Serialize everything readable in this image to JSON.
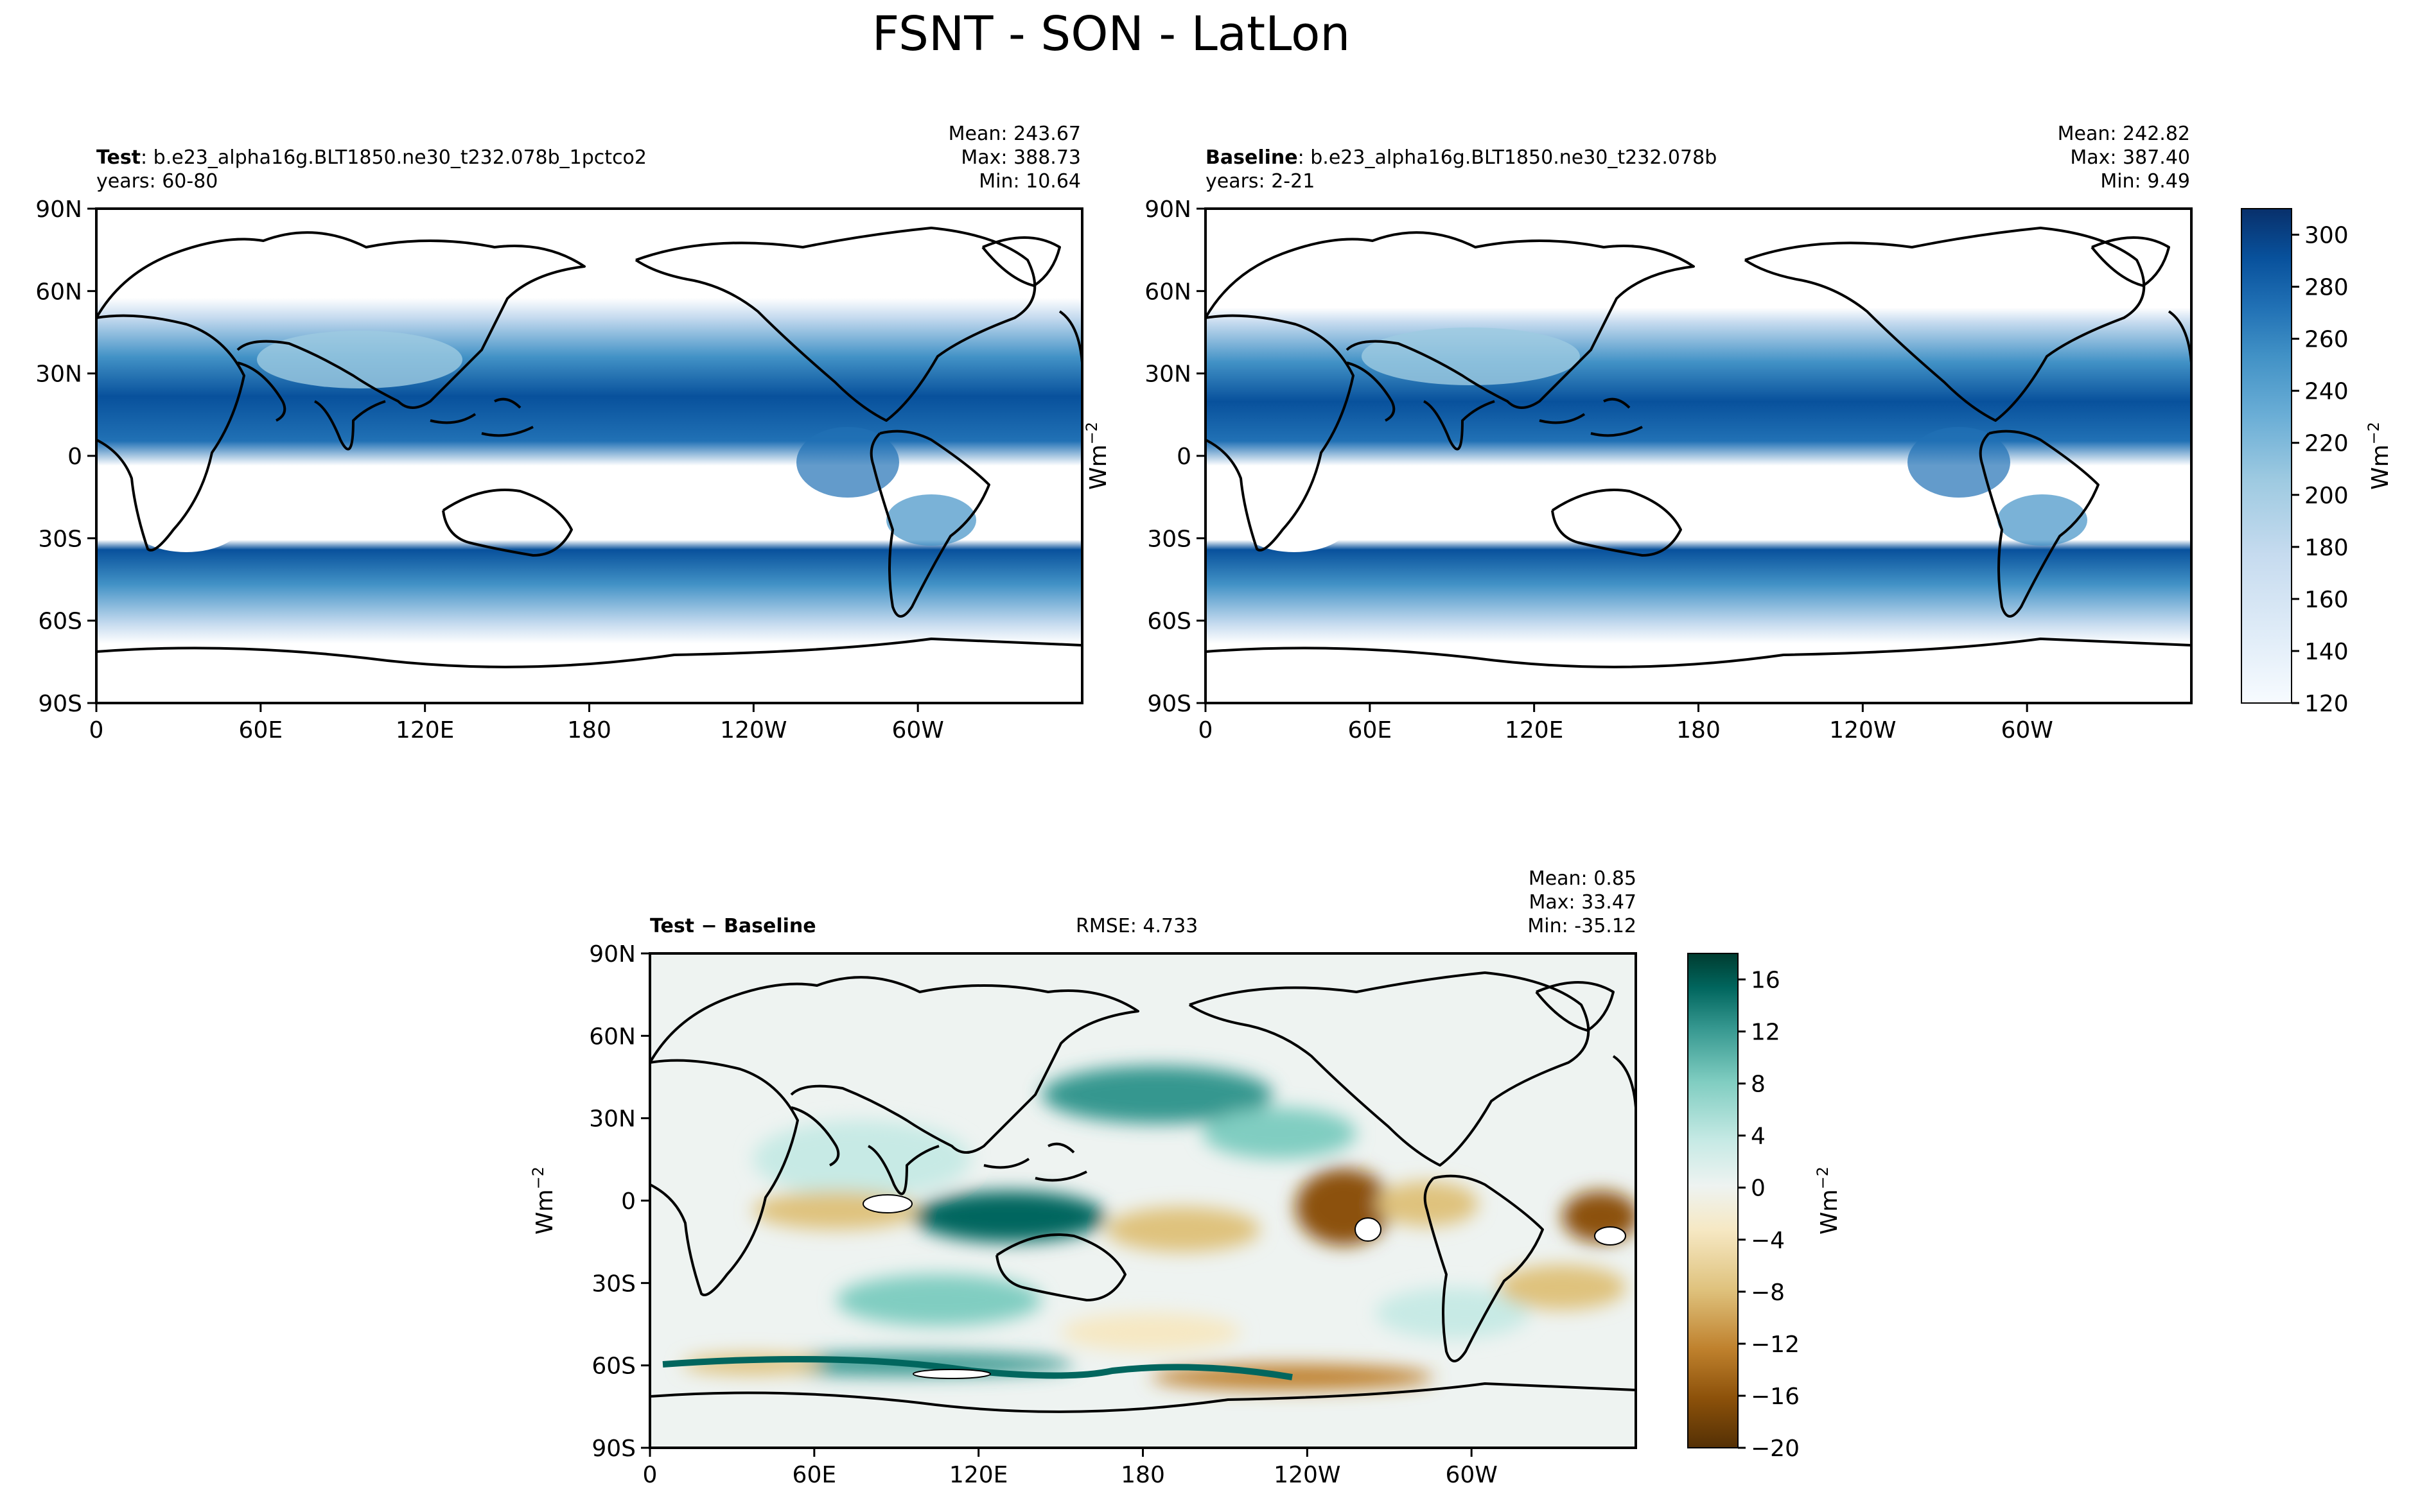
{
  "figure": {
    "title": "FSNT - SON - LatLon"
  },
  "colors": {
    "blues": [
      "#f7fbff",
      "#deebf7",
      "#c6dbef",
      "#9ecae1",
      "#6baed6",
      "#4292c6",
      "#2171b5",
      "#08519c",
      "#08306b"
    ],
    "diverging": [
      "#543005",
      "#8c510a",
      "#bf812d",
      "#dfc27d",
      "#f6e8c3",
      "#eef3f1",
      "#c7eae5",
      "#80cdc1",
      "#35978f",
      "#01665e",
      "#003c30"
    ],
    "coast": "#000000"
  },
  "chart_data": [
    {
      "type": "heatmap",
      "id": "test",
      "label_bold": "Test",
      "label_rest": ": b.e23_alpha16g.BLT1850.ne30_t232.078b_1pctco2",
      "subtitle": "years: 60-80",
      "stats": [
        "Mean: 243.67",
        "Max: 388.73",
        "Min: 10.64"
      ],
      "xticks": [
        "0",
        "60E",
        "120E",
        "180",
        "120W",
        "60W"
      ],
      "yticks": [
        "90N",
        "60N",
        "30N",
        "0",
        "30S",
        "60S",
        "90S"
      ],
      "xlim": [
        0,
        360
      ],
      "ylim": [
        -90,
        90
      ],
      "ylabel": "",
      "field": {
        "min": 10.64,
        "mean": 243.67,
        "max": 388.73,
        "units": "Wm-2"
      }
    },
    {
      "type": "heatmap",
      "id": "baseline",
      "label_bold": "Baseline",
      "label_rest": ": b.e23_alpha16g.BLT1850.ne30_t232.078b",
      "subtitle": "years: 2-21",
      "stats": [
        "Mean: 242.82",
        "Max: 387.40",
        "Min:  9.49"
      ],
      "xticks": [
        "0",
        "60E",
        "120E",
        "180",
        "120W",
        "60W"
      ],
      "yticks": [
        "90N",
        "60N",
        "30N",
        "0",
        "30S",
        "60S",
        "90S"
      ],
      "xlim": [
        0,
        360
      ],
      "ylim": [
        -90,
        90
      ],
      "ylabel": "Wm",
      "ylabel_sup": "−2",
      "field": {
        "min": 9.49,
        "mean": 242.82,
        "max": 387.4,
        "units": "Wm-2"
      },
      "colorbar": {
        "ticks": [
          "300",
          "280",
          "260",
          "240",
          "220",
          "200",
          "180",
          "160",
          "140",
          "120"
        ],
        "range": [
          120,
          310
        ],
        "label": "Wm",
        "label_sup": "−2"
      }
    },
    {
      "type": "heatmap",
      "id": "diff",
      "label_bold": "Test − Baseline",
      "rmse": "RMSE: 4.733",
      "stats": [
        "Mean:  0.85",
        "Max: 33.47",
        "Min: -35.12"
      ],
      "xticks": [
        "0",
        "60E",
        "120E",
        "180",
        "120W",
        "60W"
      ],
      "yticks": [
        "90N",
        "60N",
        "30N",
        "0",
        "30S",
        "60S",
        "90S"
      ],
      "xlim": [
        0,
        360
      ],
      "ylim": [
        -90,
        90
      ],
      "ylabel": "Wm",
      "ylabel_sup": "−2",
      "field": {
        "min": -35.12,
        "mean": 0.85,
        "max": 33.47,
        "units": "Wm-2"
      },
      "colorbar": {
        "ticks": [
          "16",
          "12",
          "8",
          "4",
          "0",
          "−4",
          "−8",
          "−12",
          "−16",
          "−20"
        ],
        "range": [
          -20,
          18
        ],
        "label": "Wm",
        "label_sup": "−2"
      }
    }
  ]
}
